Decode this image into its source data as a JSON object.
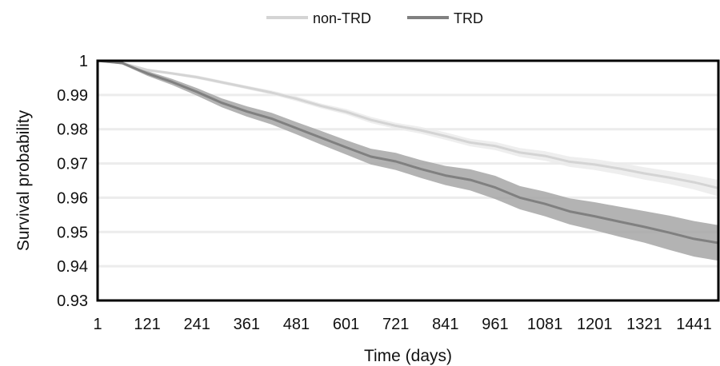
{
  "chart_data": {
    "type": "line",
    "title": "",
    "xlabel": "Time (days)",
    "ylabel": "Survival probability",
    "xlim": [
      1,
      1500
    ],
    "ylim": [
      0.93,
      1.0
    ],
    "x_ticks": [
      1,
      121,
      241,
      361,
      481,
      601,
      721,
      841,
      961,
      1081,
      1201,
      1321,
      1441
    ],
    "x_tick_labels": [
      "1",
      "121",
      "241",
      "361",
      "481",
      "601",
      "721",
      "841",
      "961",
      "1081",
      "1201",
      "1321",
      "1441"
    ],
    "y_ticks": [
      0.93,
      0.94,
      0.95,
      0.96,
      0.97,
      0.98,
      0.99,
      1.0
    ],
    "y_tick_labels": [
      "0.93",
      "0.94",
      "0.95",
      "0.96",
      "0.97",
      "0.98",
      "0.99",
      "1"
    ],
    "grid": "horizontal",
    "legend_position": "top-center",
    "x": [
      1,
      61,
      121,
      181,
      241,
      301,
      361,
      421,
      481,
      541,
      601,
      661,
      721,
      781,
      841,
      901,
      961,
      1021,
      1081,
      1141,
      1201,
      1261,
      1321,
      1381,
      1441,
      1500
    ],
    "series": [
      {
        "name": "non-TRD",
        "color": "#d4d4d4",
        "band_color": "#ebebeb",
        "values": [
          1.0,
          0.9993,
          0.9973,
          0.9963,
          0.9952,
          0.9937,
          0.9922,
          0.9907,
          0.9889,
          0.9868,
          0.9851,
          0.9827,
          0.981,
          0.9797,
          0.978,
          0.9761,
          0.9751,
          0.9732,
          0.9722,
          0.9705,
          0.9697,
          0.9685,
          0.9671,
          0.9659,
          0.9645,
          0.9628
        ],
        "lower": [
          1.0,
          0.999,
          0.9969,
          0.9959,
          0.9947,
          0.9932,
          0.9917,
          0.9901,
          0.9882,
          0.9861,
          0.9843,
          0.9818,
          0.9801,
          0.9787,
          0.9769,
          0.975,
          0.9739,
          0.9719,
          0.9708,
          0.969,
          0.9681,
          0.9668,
          0.9653,
          0.964,
          0.9624,
          0.9604
        ],
        "upper": [
          1.0,
          0.9996,
          0.9977,
          0.9967,
          0.9957,
          0.9942,
          0.9927,
          0.9913,
          0.9896,
          0.9875,
          0.9859,
          0.9836,
          0.9819,
          0.9807,
          0.9791,
          0.9772,
          0.9763,
          0.9745,
          0.9736,
          0.972,
          0.9713,
          0.9702,
          0.9689,
          0.9678,
          0.9666,
          0.9652
        ]
      },
      {
        "name": "TRD",
        "color": "#808080",
        "band_color": "#a6a6a6",
        "values": [
          1.0,
          0.9993,
          0.9963,
          0.9938,
          0.9909,
          0.9877,
          0.9852,
          0.9831,
          0.9803,
          0.9775,
          0.9747,
          0.972,
          0.9706,
          0.9684,
          0.9665,
          0.9652,
          0.963,
          0.96,
          0.9582,
          0.956,
          0.9546,
          0.953,
          0.9515,
          0.9498,
          0.948,
          0.9468
        ],
        "lower": [
          1.0,
          0.9989,
          0.9956,
          0.9929,
          0.9898,
          0.9864,
          0.9837,
          0.9814,
          0.9785,
          0.9755,
          0.9726,
          0.9697,
          0.9681,
          0.9658,
          0.9637,
          0.9621,
          0.9596,
          0.9566,
          0.9546,
          0.9522,
          0.9505,
          0.9486,
          0.9469,
          0.9448,
          0.9428,
          0.9416
        ],
        "upper": [
          1.0,
          0.9997,
          0.997,
          0.9947,
          0.992,
          0.989,
          0.9867,
          0.9848,
          0.9821,
          0.9795,
          0.9768,
          0.9743,
          0.9731,
          0.971,
          0.9693,
          0.9683,
          0.9664,
          0.9634,
          0.9618,
          0.9598,
          0.9587,
          0.9574,
          0.9561,
          0.9548,
          0.9532,
          0.952
        ]
      }
    ]
  }
}
